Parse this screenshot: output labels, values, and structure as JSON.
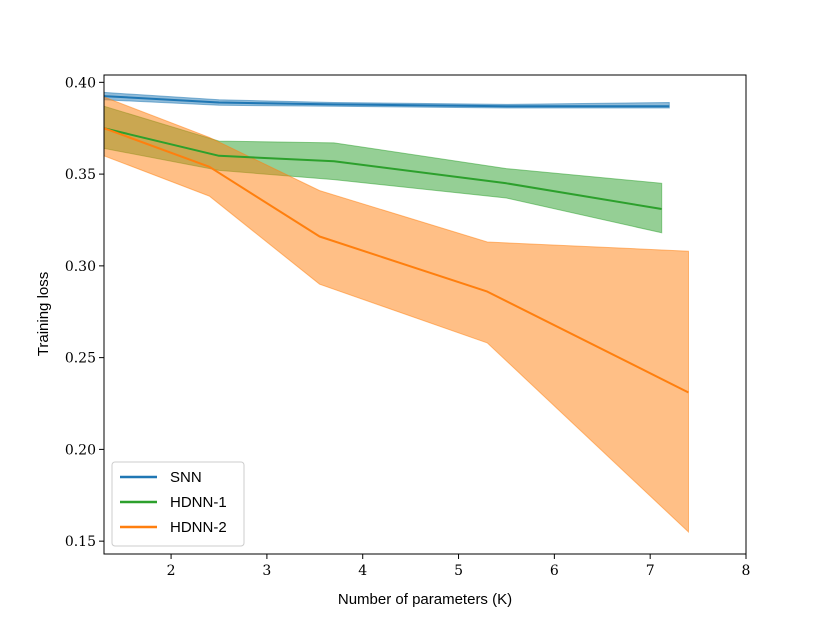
{
  "chart_data": {
    "type": "line",
    "title": "",
    "xlabel": "Number of parameters (K)",
    "ylabel": "Training loss",
    "xlim": [
      1.3,
      8.0
    ],
    "ylim": [
      0.143,
      0.404
    ],
    "xticks": [
      2,
      3,
      4,
      5,
      6,
      7,
      8
    ],
    "yticks": [
      0.15,
      0.2,
      0.25,
      0.3,
      0.35,
      0.4
    ],
    "xtick_labels": [
      "2",
      "3",
      "4",
      "5",
      "6",
      "7",
      "8"
    ],
    "ytick_labels": [
      "0.15",
      "0.20",
      "0.25",
      "0.30",
      "0.35",
      "0.40"
    ],
    "grid": false,
    "legend_position": "lower-left",
    "series": [
      {
        "name": "SNN",
        "color": "#1f77b4",
        "x": [
          1.3,
          2.5,
          3.7,
          5.5,
          7.2
        ],
        "values": [
          0.3925,
          0.389,
          0.388,
          0.387,
          0.387
        ],
        "lower": [
          0.3905,
          0.3875,
          0.387,
          0.386,
          0.386
        ],
        "upper": [
          0.3945,
          0.3905,
          0.389,
          0.388,
          0.389
        ]
      },
      {
        "name": "HDNN-1",
        "color": "#2ca02c",
        "x": [
          1.3,
          2.5,
          3.7,
          5.5,
          7.12
        ],
        "values": [
          0.375,
          0.36,
          0.357,
          0.345,
          0.331
        ],
        "lower": [
          0.364,
          0.352,
          0.347,
          0.337,
          0.318
        ],
        "upper": [
          0.387,
          0.368,
          0.367,
          0.353,
          0.345
        ]
      },
      {
        "name": "HDNN-2",
        "color": "#ff7f0e",
        "x": [
          1.3,
          2.4,
          3.55,
          5.3,
          7.4
        ],
        "values": [
          0.375,
          0.354,
          0.316,
          0.286,
          0.231
        ],
        "lower": [
          0.36,
          0.338,
          0.29,
          0.258,
          0.155
        ],
        "upper": [
          0.392,
          0.37,
          0.341,
          0.313,
          0.308
        ]
      }
    ]
  }
}
